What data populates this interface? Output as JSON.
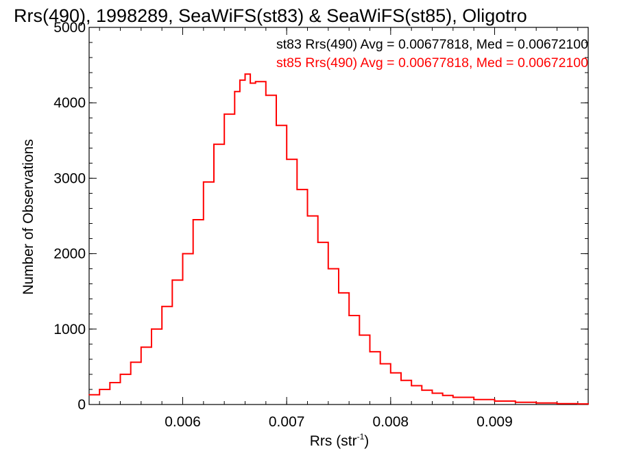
{
  "chart_data": {
    "type": "line",
    "title": "Rrs(490), 1998289, SeaWiFS(st83) & SeaWiFS(st85), Oligotro",
    "xlabel": "Rrs (str",
    "xlabel_sup": "-1",
    "xlabel_close": ")",
    "ylabel": "Number of Observations",
    "xlim": [
      0.0051,
      0.0099
    ],
    "ylim": [
      0,
      5000
    ],
    "x_ticks": [
      0.006,
      0.007,
      0.008,
      0.009
    ],
    "x_tick_labels": [
      "0.006",
      "0.007",
      "0.008",
      "0.009"
    ],
    "y_ticks": [
      0,
      1000,
      2000,
      3000,
      4000,
      5000
    ],
    "y_tick_labels": [
      "0",
      "1000",
      "2000",
      "3000",
      "4000",
      "5000"
    ],
    "grid": false,
    "legend": "top-right",
    "annotations": [
      {
        "text": "st83 Rrs(490) Avg = 0.00677818, Med = 0.00672100",
        "color": "#000000"
      },
      {
        "text": "st85 Rrs(490) Avg = 0.00677818, Med = 0.00672100",
        "color": "#ff0000"
      }
    ],
    "series": [
      {
        "name": "st85",
        "color": "#ff0000",
        "x": [
          0.0051,
          0.0052,
          0.0053,
          0.0054,
          0.0055,
          0.0056,
          0.0057,
          0.0058,
          0.0059,
          0.006,
          0.0061,
          0.0062,
          0.0063,
          0.0064,
          0.0065,
          0.00655,
          0.0066,
          0.00665,
          0.0067,
          0.0068,
          0.0069,
          0.007,
          0.0071,
          0.0072,
          0.0073,
          0.0074,
          0.0075,
          0.0076,
          0.0077,
          0.0078,
          0.0079,
          0.008,
          0.0081,
          0.0082,
          0.0083,
          0.0084,
          0.0085,
          0.0086,
          0.0088,
          0.009,
          0.0092,
          0.0094,
          0.0096,
          0.0098,
          0.0099
        ],
        "y": [
          130,
          200,
          290,
          400,
          560,
          760,
          1000,
          1300,
          1650,
          2000,
          2450,
          2950,
          3450,
          3850,
          4150,
          4300,
          4380,
          4260,
          4280,
          4100,
          3700,
          3250,
          2850,
          2500,
          2150,
          1800,
          1480,
          1180,
          920,
          700,
          540,
          420,
          320,
          250,
          190,
          150,
          120,
          95,
          65,
          45,
          30,
          20,
          12,
          8,
          5
        ]
      }
    ]
  }
}
